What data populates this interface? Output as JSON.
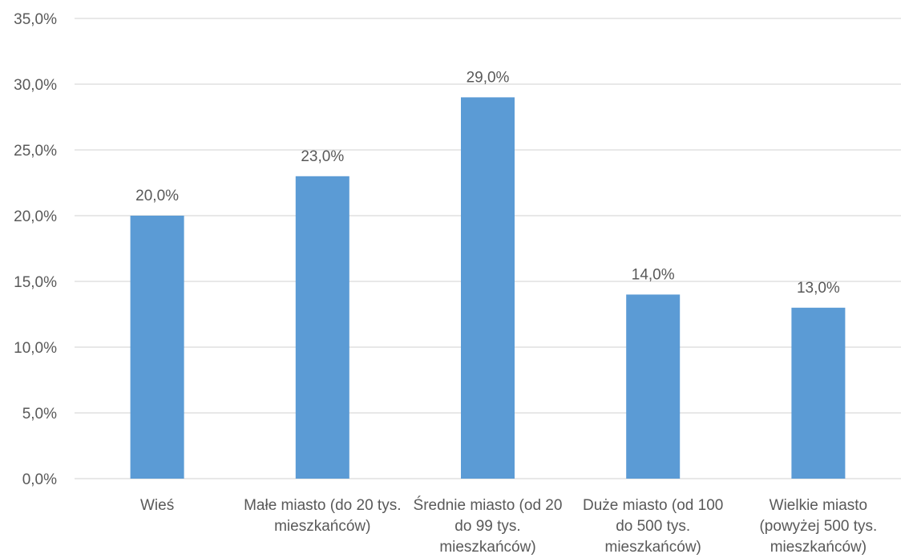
{
  "chart_data": {
    "type": "bar",
    "categories": [
      "Wieś",
      "Małe miasto (do 20 tys. mieszkańców)",
      "Średnie miasto (od 20 do 99 tys. mieszkańców)",
      "Duże miasto (od 100 do 500 tys. mieszkańców)",
      "Wielkie miasto (powyżej 500 tys. mieszkańców)"
    ],
    "values": [
      20.0,
      23.0,
      29.0,
      14.0,
      13.0
    ],
    "data_labels": [
      "20,0%",
      "23,0%",
      "29,0%",
      "14,0%",
      "13,0%"
    ],
    "title": "",
    "xlabel": "",
    "ylabel": "",
    "ylim": [
      0,
      35
    ],
    "yticks": [
      0,
      5,
      10,
      15,
      20,
      25,
      30,
      35
    ],
    "ytick_labels": [
      "0,0%",
      "5,0%",
      "10,0%",
      "15,0%",
      "20,0%",
      "25,0%",
      "30,0%",
      "35,0%"
    ],
    "grid": true,
    "legend": "none",
    "colors": {
      "bar": "#5B9BD5",
      "grid": "#D9D9D9",
      "text": "#595959"
    }
  }
}
